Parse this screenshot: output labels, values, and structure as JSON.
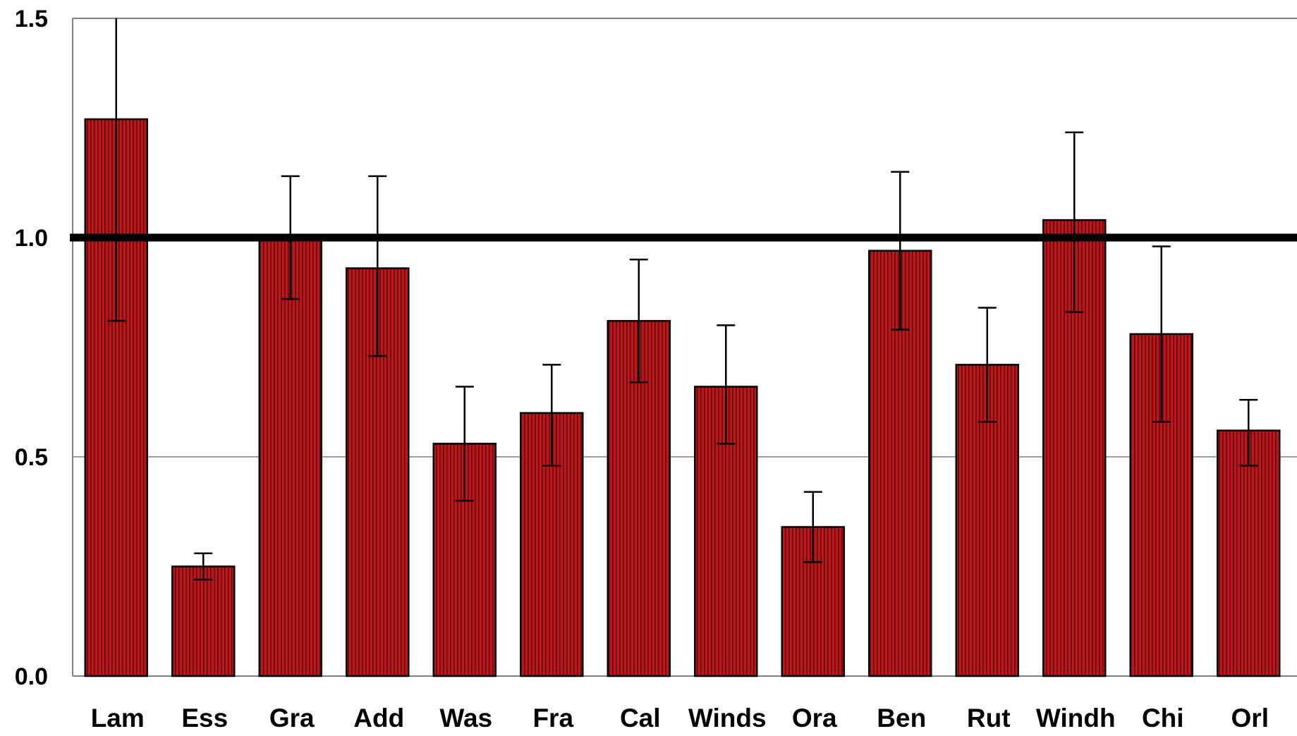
{
  "colors": {
    "bar_fill": "#c0161b",
    "bar_stripe": "#5a0a0c",
    "bar_edge": "#000000",
    "reference_line": "#000000",
    "gridline": "#808080",
    "frame": "#808080"
  },
  "chart_data": {
    "type": "bar",
    "title": "",
    "xlabel": "",
    "ylabel": "",
    "ylim": [
      0,
      1.5
    ],
    "yticks": [
      "0.0",
      "0.5",
      "1.0",
      "1.5"
    ],
    "grid": "horizontal",
    "reference_line": 1.0,
    "categories": [
      "Lam",
      "Ess",
      "Gra",
      "Add",
      "Was",
      "Fra",
      "Cal",
      "Winds",
      "Ora",
      "Ben",
      "Rut",
      "Windh",
      "Chi",
      "Orl"
    ],
    "values": [
      1.27,
      0.25,
      1.0,
      0.93,
      0.53,
      0.6,
      0.81,
      0.66,
      0.34,
      0.97,
      0.71,
      1.04,
      0.78,
      0.56
    ],
    "error_low": [
      0.81,
      0.22,
      0.86,
      0.73,
      0.4,
      0.48,
      0.67,
      0.53,
      0.26,
      0.79,
      0.58,
      0.83,
      0.58,
      0.48
    ],
    "error_high": [
      1.5,
      0.28,
      1.14,
      1.14,
      0.66,
      0.71,
      0.95,
      0.8,
      0.42,
      1.15,
      0.84,
      1.24,
      0.98,
      0.63
    ]
  }
}
